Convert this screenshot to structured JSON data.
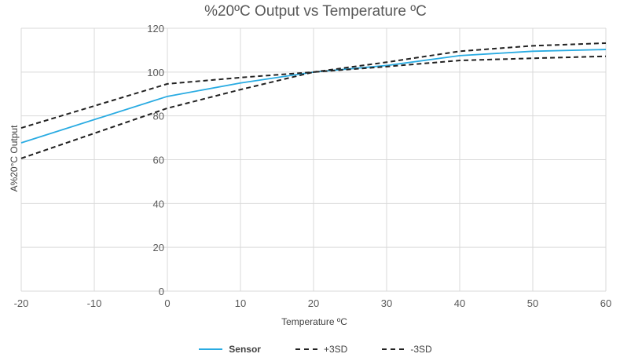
{
  "chart_data": {
    "type": "line",
    "title": "%20ºC Output vs Temperature ºC",
    "xlabel": "Temperature ºC",
    "ylabel": "A%20°C Output",
    "x": [
      -20,
      0,
      10,
      20,
      30,
      40,
      50,
      60
    ],
    "xlim": [
      -20,
      60
    ],
    "ylim": [
      0,
      120
    ],
    "xticks": [
      -20,
      -10,
      0,
      10,
      20,
      30,
      40,
      50,
      60
    ],
    "yticks": [
      0,
      20,
      40,
      60,
      80,
      100,
      120
    ],
    "grid": true,
    "legend": "bottom",
    "series": [
      {
        "name": "Sensor",
        "values": [
          67.7,
          88.9,
          95,
          100,
          103,
          107.5,
          109.5,
          110.3
        ],
        "color": "#29ABE2",
        "style": "solid"
      },
      {
        "name": "+3SD",
        "values": [
          74.5,
          94.6,
          97.5,
          100,
          104.5,
          109.5,
          112,
          113.2
        ],
        "color": "#222222",
        "style": "dashed"
      },
      {
        "name": "-3SD",
        "values": [
          60.6,
          83.5,
          92,
          100,
          102.5,
          105.3,
          106.3,
          107.2
        ],
        "color": "#222222",
        "style": "dashed"
      }
    ]
  }
}
